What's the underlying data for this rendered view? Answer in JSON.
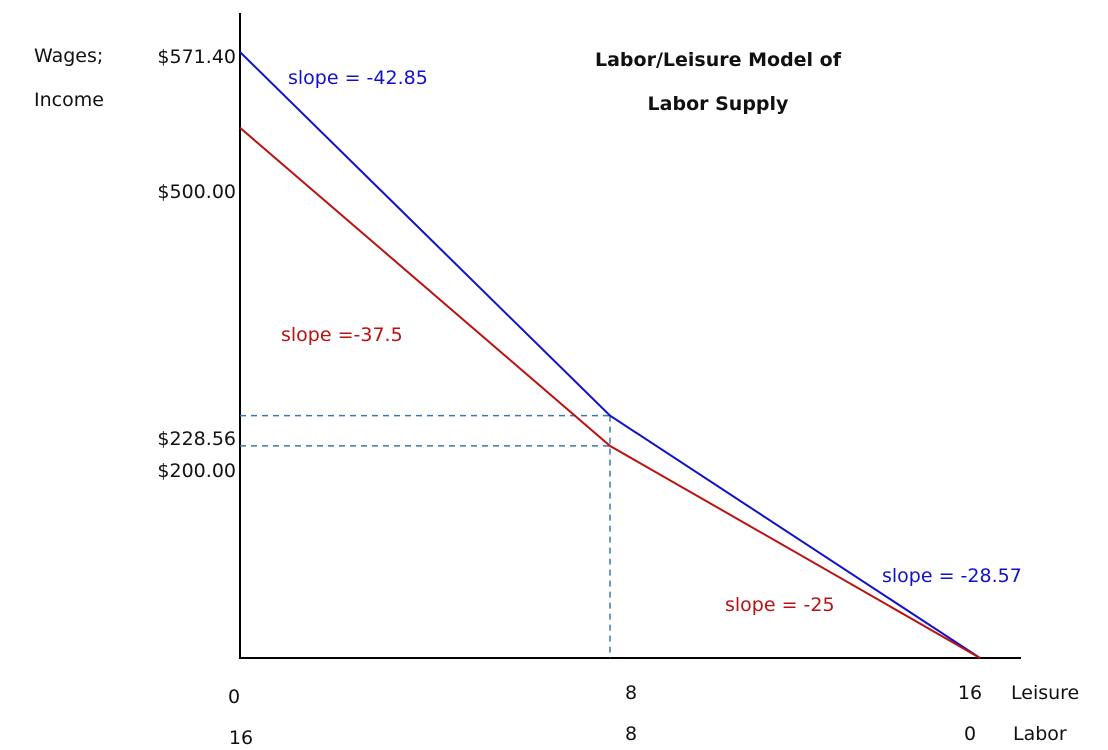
{
  "chart_data": {
    "type": "line",
    "title_lines": [
      "Labor/Leisure Model of",
      "Labor Supply"
    ],
    "ylabel_lines": [
      "Wages;",
      "Income"
    ],
    "xlim": [
      0,
      16
    ],
    "ylim": [
      0,
      571.4
    ],
    "y_tick_labels": [
      {
        "value": 571.4,
        "label": "$571.40"
      },
      {
        "value": 500.0,
        "label": "$500.00"
      },
      {
        "value": 228.56,
        "label": "$228.56"
      },
      {
        "value": 200.0,
        "label": "$200.00"
      }
    ],
    "x_axis_rows": [
      {
        "name": "Leisure",
        "ticks": [
          {
            "x": 0,
            "label": "0"
          },
          {
            "x": 8,
            "label": "8"
          },
          {
            "x": 16,
            "label": "16"
          }
        ]
      },
      {
        "name": "Labor",
        "ticks": [
          {
            "x": 0,
            "label": "16"
          },
          {
            "x": 8,
            "label": "8"
          },
          {
            "x": 16,
            "label": "0"
          }
        ]
      }
    ],
    "series": [
      {
        "color": "#1111cc",
        "points": [
          {
            "x": 0,
            "y": 571.4
          },
          {
            "x": 8,
            "y": 228.56
          },
          {
            "x": 16,
            "y": 0
          }
        ],
        "slope_labels": [
          "slope = -42.85",
          "slope = -28.57"
        ]
      },
      {
        "color": "#bb1111",
        "points": [
          {
            "x": 0,
            "y": 500.0
          },
          {
            "x": 8,
            "y": 200.0
          },
          {
            "x": 16,
            "y": 0
          }
        ],
        "slope_labels": [
          "slope =-37.5",
          "slope = -25"
        ]
      }
    ],
    "reference_lines": {
      "color": "#3a78b5",
      "style": "dashed",
      "horizontal_y": [
        228.56,
        200.0
      ],
      "vertical_x": [
        8
      ]
    },
    "grid": false,
    "legend": "none"
  }
}
